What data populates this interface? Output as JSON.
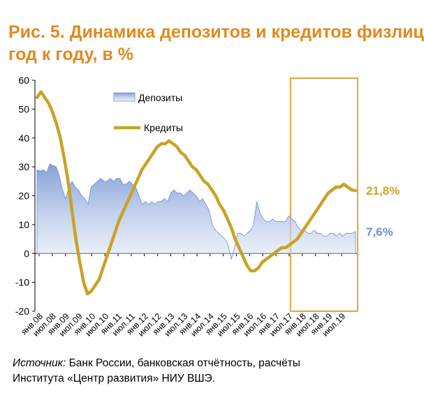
{
  "title_line1": "Рис. 5. Динамика депозитов и кредитов физлиц",
  "title_line2": "год к году, в %",
  "source_label": "Источник:",
  "source_text": " Банк России, банковская отчётность, расчёты",
  "source_text2": "Института «Центр развития» НИУ ВШЭ.",
  "chart_data": {
    "type": "line",
    "x_tick_labels": [
      "янв.08",
      "июл.08",
      "янв.09",
      "июл.09",
      "янв.10",
      "июл.10",
      "янв.11",
      "июл.11",
      "янв.12",
      "июл.12",
      "янв.13",
      "июл.13",
      "янв.14",
      "июл.14",
      "янв.15",
      "июл.15",
      "янв.16",
      "июл.16",
      "янв.17",
      "июл.17",
      "янв.18",
      "июл.18",
      "янв.19",
      "июл.19"
    ],
    "ylim": [
      -20,
      60
    ],
    "yticks": [
      -20,
      -10,
      0,
      10,
      20,
      30,
      40,
      50,
      60
    ],
    "highlight_box": {
      "from": "июл.17",
      "to": "июл.19"
    },
    "series": [
      {
        "name": "Депозиты",
        "render": "area",
        "color": "#8eaadb",
        "values": [
          29,
          28.5,
          29,
          28,
          31,
          30.5,
          30,
          27,
          22,
          19,
          23,
          25,
          23,
          22,
          20,
          19,
          17,
          23,
          24,
          25,
          26,
          25,
          25,
          26,
          25,
          26,
          26,
          24,
          24,
          25,
          24,
          23,
          20,
          17,
          18,
          17,
          18,
          17,
          18,
          18,
          19,
          18,
          21,
          22,
          21,
          21,
          20,
          21,
          22,
          21,
          20,
          18,
          19,
          17,
          15,
          10,
          8,
          7,
          6,
          5,
          3,
          -2,
          2,
          7,
          7,
          6,
          7,
          8,
          10,
          18,
          14,
          12,
          11,
          11,
          12,
          11,
          11,
          11,
          11,
          13,
          12,
          11,
          9,
          8,
          8,
          7,
          7,
          8,
          7,
          7,
          6,
          6,
          7,
          7,
          6,
          7,
          6,
          7,
          7,
          7,
          7.6
        ],
        "end_label": "7,6%"
      },
      {
        "name": "Кредиты",
        "render": "line",
        "color": "#c9a227",
        "values": [
          54,
          56,
          54,
          52,
          49,
          45,
          40,
          33,
          25,
          15,
          5,
          -3,
          -10,
          -14,
          -13,
          -11,
          -9,
          -5,
          -1,
          3,
          7,
          11,
          14,
          17,
          20,
          23,
          26,
          29,
          31,
          33,
          35,
          37,
          38,
          38,
          39,
          38,
          37,
          35,
          34,
          32,
          30,
          29,
          27,
          25,
          24,
          22,
          20,
          17,
          15,
          12,
          9,
          5,
          2,
          -1,
          -4,
          -6,
          -6,
          -5,
          -3,
          -2,
          -1,
          0,
          1,
          2,
          2,
          3,
          4,
          5,
          7,
          9,
          11,
          13,
          15,
          17,
          19,
          21,
          22,
          23,
          23,
          24,
          23,
          22,
          21.8
        ],
        "end_label": "21,8%"
      }
    ],
    "legend": [
      "Депозиты",
      "Кредиты"
    ],
    "legend_position": "top-left inside plot",
    "grid": false,
    "xlabel": "",
    "ylabel": ""
  }
}
